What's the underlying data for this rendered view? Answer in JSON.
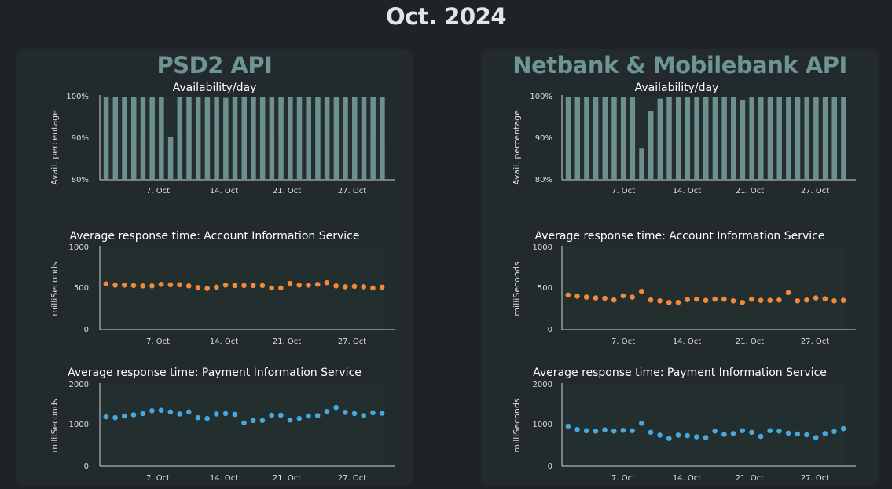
{
  "page_title": "Oct. 2024",
  "colors": {
    "avail_bar": "#6d8f8d",
    "ais_point": "#f28a3a",
    "pis_point": "#4aa6dc",
    "panel_title": "#6f9494"
  },
  "panels": [
    {
      "title": "PSD2 API",
      "avail": {
        "title": "Availability/day",
        "ylabel": "Avail. percentage",
        "yticks": [
          "80%",
          "90%",
          "100%"
        ],
        "xticks": [
          "7. Oct",
          "14. Oct",
          "21. Oct",
          "27. Oct"
        ]
      },
      "ais": {
        "title": "Average response time: Account Information Service",
        "ylabel": "milliSeconds",
        "yticks": [
          "0",
          "500",
          "1000"
        ],
        "xticks": [
          "7. Oct",
          "14. Oct",
          "21. Oct",
          "27. Oct"
        ]
      },
      "pis": {
        "title": "Average response time: Payment Information Service",
        "ylabel": "milliSeconds",
        "yticks": [
          "0",
          "1000",
          "2000"
        ],
        "xticks": [
          "7. Oct",
          "14. Oct",
          "21. Oct",
          "27. Oct"
        ]
      }
    },
    {
      "title": "Netbank & Mobilebank API",
      "avail": {
        "title": "Availability/day",
        "ylabel": "Avail. percentage",
        "yticks": [
          "80%",
          "90%",
          "100%"
        ],
        "xticks": [
          "7. Oct",
          "14. Oct",
          "21. Oct",
          "27. Oct"
        ]
      },
      "ais": {
        "title": "Average response time: Account Information Service",
        "ylabel": "milliSeconds",
        "yticks": [
          "0",
          "500",
          "1000"
        ],
        "xticks": [
          "7. Oct",
          "14. Oct",
          "21. Oct",
          "27. Oct"
        ]
      },
      "pis": {
        "title": "Average response time: Payment Information Service",
        "ylabel": "milliSeconds",
        "yticks": [
          "0",
          "1000",
          "2000"
        ],
        "xticks": [
          "7. Oct",
          "14. Oct",
          "21. Oct",
          "27. Oct"
        ]
      }
    }
  ],
  "chart_data": [
    {
      "panel": "PSD2 API",
      "type": "bar",
      "title": "Availability/day",
      "ylabel": "Avail. percentage",
      "xlabel": "",
      "ylim": [
        80,
        100
      ],
      "x": [
        "2024-10-01",
        "2024-10-02",
        "2024-10-03",
        "2024-10-04",
        "2024-10-05",
        "2024-10-06",
        "2024-10-07",
        "2024-10-08",
        "2024-10-09",
        "2024-10-10",
        "2024-10-11",
        "2024-10-12",
        "2024-10-13",
        "2024-10-14",
        "2024-10-15",
        "2024-10-16",
        "2024-10-17",
        "2024-10-18",
        "2024-10-19",
        "2024-10-20",
        "2024-10-21",
        "2024-10-22",
        "2024-10-23",
        "2024-10-24",
        "2024-10-25",
        "2024-10-26",
        "2024-10-27",
        "2024-10-28",
        "2024-10-29",
        "2024-10-30",
        "2024-10-31"
      ],
      "values": [
        100,
        100,
        100,
        100,
        100,
        100,
        100,
        90.2,
        100,
        100,
        100,
        100,
        100,
        99.7,
        100,
        100,
        100,
        100,
        100,
        100,
        100,
        100,
        100,
        100,
        100,
        100,
        100,
        100,
        100,
        100,
        100
      ]
    },
    {
      "panel": "PSD2 API",
      "type": "scatter",
      "title": "Average response time: Account Information Service",
      "ylabel": "milliSeconds",
      "xlabel": "",
      "ylim": [
        0,
        1000
      ],
      "x": [
        "2024-10-01",
        "2024-10-02",
        "2024-10-03",
        "2024-10-04",
        "2024-10-05",
        "2024-10-06",
        "2024-10-07",
        "2024-10-08",
        "2024-10-09",
        "2024-10-10",
        "2024-10-11",
        "2024-10-12",
        "2024-10-13",
        "2024-10-14",
        "2024-10-15",
        "2024-10-16",
        "2024-10-17",
        "2024-10-18",
        "2024-10-19",
        "2024-10-20",
        "2024-10-21",
        "2024-10-22",
        "2024-10-23",
        "2024-10-24",
        "2024-10-25",
        "2024-10-26",
        "2024-10-27",
        "2024-10-28",
        "2024-10-29",
        "2024-10-30",
        "2024-10-31"
      ],
      "values": [
        555,
        540,
        540,
        535,
        530,
        530,
        550,
        545,
        545,
        530,
        510,
        500,
        515,
        540,
        535,
        535,
        535,
        535,
        505,
        505,
        560,
        540,
        540,
        550,
        570,
        530,
        520,
        525,
        520,
        505,
        515
      ]
    },
    {
      "panel": "PSD2 API",
      "type": "scatter",
      "title": "Average response time: Payment Information Service",
      "ylabel": "milliSeconds",
      "xlabel": "",
      "ylim": [
        0,
        2000
      ],
      "x": [
        "2024-10-01",
        "2024-10-02",
        "2024-10-03",
        "2024-10-04",
        "2024-10-05",
        "2024-10-06",
        "2024-10-07",
        "2024-10-08",
        "2024-10-09",
        "2024-10-10",
        "2024-10-11",
        "2024-10-12",
        "2024-10-13",
        "2024-10-14",
        "2024-10-15",
        "2024-10-16",
        "2024-10-17",
        "2024-10-18",
        "2024-10-19",
        "2024-10-20",
        "2024-10-21",
        "2024-10-22",
        "2024-10-23",
        "2024-10-24",
        "2024-10-25",
        "2024-10-26",
        "2024-10-27",
        "2024-10-28",
        "2024-10-29",
        "2024-10-30",
        "2024-10-31"
      ],
      "values": [
        1210,
        1190,
        1230,
        1260,
        1290,
        1360,
        1370,
        1330,
        1280,
        1330,
        1190,
        1170,
        1280,
        1290,
        1270,
        1060,
        1120,
        1120,
        1250,
        1250,
        1130,
        1170,
        1230,
        1240,
        1340,
        1440,
        1320,
        1290,
        1240,
        1310,
        1300
      ]
    },
    {
      "panel": "Netbank & Mobilebank API",
      "type": "bar",
      "title": "Availability/day",
      "ylabel": "Avail. percentage",
      "xlabel": "",
      "ylim": [
        80,
        100
      ],
      "x": [
        "2024-10-01",
        "2024-10-02",
        "2024-10-03",
        "2024-10-04",
        "2024-10-05",
        "2024-10-06",
        "2024-10-07",
        "2024-10-08",
        "2024-10-09",
        "2024-10-10",
        "2024-10-11",
        "2024-10-12",
        "2024-10-13",
        "2024-10-14",
        "2024-10-15",
        "2024-10-16",
        "2024-10-17",
        "2024-10-18",
        "2024-10-19",
        "2024-10-20",
        "2024-10-21",
        "2024-10-22",
        "2024-10-23",
        "2024-10-24",
        "2024-10-25",
        "2024-10-26",
        "2024-10-27",
        "2024-10-28",
        "2024-10-29",
        "2024-10-30",
        "2024-10-31"
      ],
      "values": [
        100,
        100,
        100,
        100,
        100,
        100,
        100,
        100,
        87.5,
        96.5,
        99.5,
        100,
        100,
        100,
        100,
        100,
        100,
        100,
        100,
        99.2,
        100,
        100,
        100,
        100,
        100,
        100,
        100,
        100,
        100,
        100,
        100
      ]
    },
    {
      "panel": "Netbank & Mobilebank API",
      "type": "scatter",
      "title": "Average response time: Account Information Service",
      "ylabel": "milliSeconds",
      "xlabel": "",
      "ylim": [
        0,
        1000
      ],
      "x": [
        "2024-10-01",
        "2024-10-02",
        "2024-10-03",
        "2024-10-04",
        "2024-10-05",
        "2024-10-06",
        "2024-10-07",
        "2024-10-08",
        "2024-10-09",
        "2024-10-10",
        "2024-10-11",
        "2024-10-12",
        "2024-10-13",
        "2024-10-14",
        "2024-10-15",
        "2024-10-16",
        "2024-10-17",
        "2024-10-18",
        "2024-10-19",
        "2024-10-20",
        "2024-10-21",
        "2024-10-22",
        "2024-10-23",
        "2024-10-24",
        "2024-10-25",
        "2024-10-26",
        "2024-10-27",
        "2024-10-28",
        "2024-10-29",
        "2024-10-30",
        "2024-10-31"
      ],
      "values": [
        420,
        405,
        395,
        385,
        380,
        360,
        410,
        395,
        465,
        360,
        350,
        330,
        330,
        365,
        370,
        355,
        370,
        370,
        350,
        330,
        370,
        355,
        355,
        360,
        450,
        350,
        360,
        385,
        375,
        350,
        355
      ]
    },
    {
      "panel": "Netbank & Mobilebank API",
      "type": "scatter",
      "title": "Average response time: Payment Information Service",
      "ylabel": "milliSeconds",
      "xlabel": "",
      "ylim": [
        0,
        2000
      ],
      "x": [
        "2024-10-01",
        "2024-10-02",
        "2024-10-03",
        "2024-10-04",
        "2024-10-05",
        "2024-10-06",
        "2024-10-07",
        "2024-10-08",
        "2024-10-09",
        "2024-10-10",
        "2024-10-11",
        "2024-10-12",
        "2024-10-13",
        "2024-10-14",
        "2024-10-15",
        "2024-10-16",
        "2024-10-17",
        "2024-10-18",
        "2024-10-19",
        "2024-10-20",
        "2024-10-21",
        "2024-10-22",
        "2024-10-23",
        "2024-10-24",
        "2024-10-25",
        "2024-10-26",
        "2024-10-27",
        "2024-10-28",
        "2024-10-29",
        "2024-10-30",
        "2024-10-31"
      ],
      "values": [
        980,
        900,
        870,
        860,
        890,
        860,
        880,
        870,
        1050,
        830,
        760,
        680,
        760,
        750,
        720,
        700,
        860,
        780,
        800,
        870,
        830,
        730,
        870,
        860,
        810,
        790,
        770,
        700,
        800,
        850,
        920
      ]
    }
  ]
}
